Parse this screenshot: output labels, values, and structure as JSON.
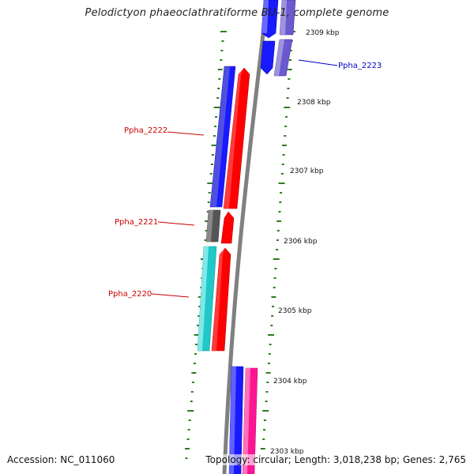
{
  "title": "Pelodictyon phaeoclathratiforme BU-1, complete genome",
  "footer": {
    "accession": "Accession: NC_011060",
    "summary": "Topology: circular; Length: 3,018,238 bp; Genes: 2,765"
  },
  "colors": {
    "backbone": "#808080",
    "ticks": "#2e7d1e",
    "forward_gene": "#ff0000",
    "reverse_blue": "#1a1aff",
    "reverse_purple": "#6a5acd",
    "cyan": "#20c8c8",
    "gray_gene": "#555555",
    "magenta": "#ff1493",
    "label_red": "#cc0000",
    "label_blue": "#0000cc"
  },
  "scale_labels": [
    "2309 kbp",
    "2308 kbp",
    "2307 kbp",
    "2306 kbp",
    "2305 kbp",
    "2304 kbp",
    "2303 kbp"
  ],
  "gene_labels": [
    {
      "name": "Ppha_2223",
      "color": "blue"
    },
    {
      "name": "Ppha_2222",
      "color": "red"
    },
    {
      "name": "Ppha_2221",
      "color": "red"
    },
    {
      "name": "Ppha_2220",
      "color": "red"
    }
  ]
}
